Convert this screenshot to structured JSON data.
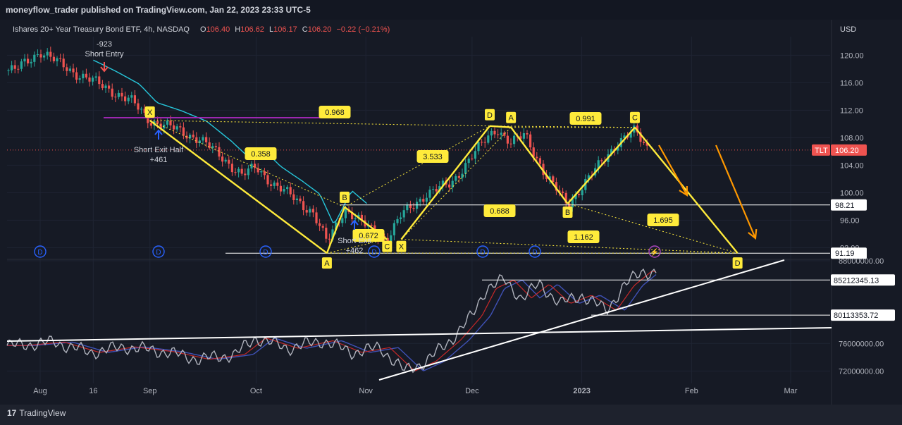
{
  "header": {
    "publisher": "moneyflow_trader published on TradingView.com, Jan 22, 2023 23:33 UTC-5"
  },
  "footer": {
    "brand": "TradingView"
  },
  "legend": {
    "symbol": "Ishares 20+ Year Treasury Bond ETF, 4h, NASDAQ",
    "o_label": "O",
    "o": "106.40",
    "h_label": "H",
    "h": "106.62",
    "l_label": "L",
    "l": "106.17",
    "c_label": "C",
    "c": "106.20",
    "change": "−0.22 (−0.21%)"
  },
  "colors": {
    "up": "#26a69a",
    "down": "#ef5350",
    "pattern": "#ffeb3b",
    "projection": "#ff9800",
    "trail": "#26c6da",
    "level": "#9c27b0"
  },
  "chart_data": [
    {
      "type": "candlestick",
      "ylabel": "USD",
      "ylim": [
        90.6,
        122.7
      ],
      "y_ticks": [
        "120.00",
        "116.00",
        "112.00",
        "108.00",
        "104.00",
        "100.00",
        "96.00",
        "92.00"
      ],
      "x_labels": [
        "Aug",
        "16",
        "Sep",
        "Oct",
        "Nov",
        "Dec",
        "2023",
        "Feb",
        "Mar"
      ],
      "price_tag": {
        "symbol": "TLT",
        "value": "106.20"
      },
      "path": [
        [
          "2022-07-25",
          117.8
        ],
        [
          "2022-08-01",
          120.6
        ],
        [
          "2022-08-06",
          118.9
        ],
        [
          "2022-08-11",
          117.4
        ],
        [
          "2022-08-16",
          116.2
        ],
        [
          "2022-08-21",
          114.9
        ],
        [
          "2022-08-27",
          113.2
        ],
        [
          "2022-09-01",
          110.5
        ],
        [
          "2022-09-08",
          109.3
        ],
        [
          "2022-09-15",
          107.8
        ],
        [
          "2022-09-22",
          104.9
        ],
        [
          "2022-09-27",
          102.5
        ],
        [
          "2022-10-01",
          103.7
        ],
        [
          "2022-10-06",
          101.2
        ],
        [
          "2022-10-12",
          99.1
        ],
        [
          "2022-10-17",
          97.2
        ],
        [
          "2022-10-21",
          92.7
        ],
        [
          "2022-10-26",
          97.7
        ],
        [
          "2022-10-31",
          95.5
        ],
        [
          "2022-11-04",
          94.1
        ],
        [
          "2022-11-07",
          93.2
        ],
        [
          "2022-11-11",
          96.7
        ],
        [
          "2022-11-18",
          99.8
        ],
        [
          "2022-11-25",
          101.3
        ],
        [
          "2022-11-30",
          104.7
        ],
        [
          "2022-12-06",
          108.4
        ],
        [
          "2022-12-08",
          109.4
        ],
        [
          "2022-12-12",
          107.1
        ],
        [
          "2022-12-16",
          108.5
        ],
        [
          "2022-12-22",
          102.3
        ],
        [
          "2022-12-28",
          98.3
        ],
        [
          "2023-01-03",
          102.1
        ],
        [
          "2023-01-11",
          107.3
        ],
        [
          "2023-01-16",
          108.9
        ],
        [
          "2023-01-20",
          106.2
        ]
      ],
      "levels": [
        {
          "value": 98.21,
          "label": "98.21"
        },
        {
          "value": 91.19,
          "label": "91.19"
        }
      ],
      "pattern_points": [
        {
          "label": "X",
          "date": "2022-09-01",
          "price": 110.5
        },
        {
          "label": "A",
          "date": "2022-10-21",
          "price": 91.2
        },
        {
          "label": "B",
          "date": "2022-10-26",
          "price": 97.9
        },
        {
          "label": "C",
          "date": "2022-11-07",
          "price": 93.2
        },
        {
          "label": "X",
          "date": "2022-11-11",
          "price": 93.2
        },
        {
          "label": "D",
          "date": "2022-12-06",
          "price": 109.7
        },
        {
          "label": "A",
          "date": "2022-12-12",
          "price": 109.5
        },
        {
          "label": "B",
          "date": "2022-12-28",
          "price": 98.4
        },
        {
          "label": "C",
          "date": "2023-01-16",
          "price": 109.5
        },
        {
          "label": "D",
          "date": "2023-02-14",
          "price": 91.2
        }
      ],
      "ratios": [
        "0.968",
        "0.358",
        "0.672",
        "3.533",
        "0.688",
        "0.991",
        "1.695",
        "1.162"
      ],
      "signals": [
        {
          "kind": "entry",
          "value": "-923",
          "label": "Short Entry"
        },
        {
          "kind": "exit_half",
          "label": "Short Exit Half",
          "value": "+461"
        },
        {
          "kind": "exit",
          "label": "Short Exit",
          "value": "+462"
        }
      ],
      "markers": {
        "dividend_glyph": "D",
        "count": 7
      }
    },
    {
      "type": "line",
      "ylim": [
        70200000,
        88000000
      ],
      "y_ticks": [
        "88000000.00",
        "76000000.00",
        "72000000.00"
      ],
      "series_points": [
        [
          "2022-07-25",
          75700000
        ],
        [
          "2022-08-05",
          76200000
        ],
        [
          "2022-08-15",
          74700000
        ],
        [
          "2022-08-25",
          75500000
        ],
        [
          "2022-09-05",
          74800000
        ],
        [
          "2022-09-15",
          73700000
        ],
        [
          "2022-09-25",
          74400000
        ],
        [
          "2022-10-01",
          76800000
        ],
        [
          "2022-10-10",
          75300000
        ],
        [
          "2022-10-20",
          76400000
        ],
        [
          "2022-10-28",
          74700000
        ],
        [
          "2022-11-05",
          75400000
        ],
        [
          "2022-11-12",
          72000000
        ],
        [
          "2022-11-18",
          73400000
        ],
        [
          "2022-11-25",
          76500000
        ],
        [
          "2022-12-01",
          80000000
        ],
        [
          "2022-12-05",
          84000000
        ],
        [
          "2022-12-10",
          85200000
        ],
        [
          "2022-12-15",
          82600000
        ],
        [
          "2022-12-20",
          84600000
        ],
        [
          "2022-12-26",
          81800000
        ],
        [
          "2023-01-01",
          83000000
        ],
        [
          "2023-01-08",
          80800000
        ],
        [
          "2023-01-13",
          84400000
        ],
        [
          "2023-01-18",
          86500000
        ],
        [
          "2023-01-22",
          86200000
        ]
      ],
      "levels": [
        {
          "value": 85212345.13,
          "label": "85212345.13"
        },
        {
          "value": 80113353.72,
          "label": "80113353.72"
        }
      ]
    }
  ]
}
